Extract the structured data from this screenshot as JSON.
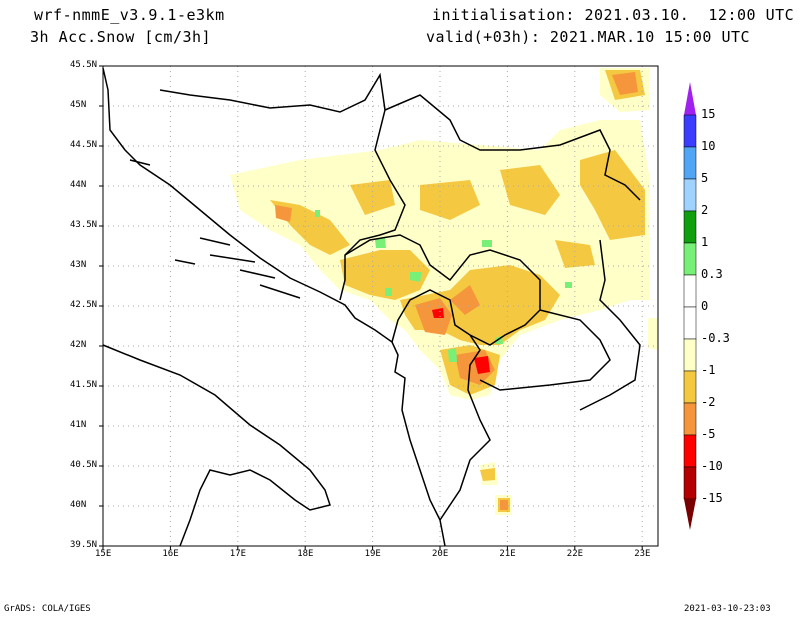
{
  "header": {
    "model": "wrf-nmmE_v3.9.1-e3km",
    "variable": "3h Acc.Snow [cm/3h]",
    "init": "initialisation: 2021.03.10.  12:00 UTC",
    "valid": "valid(+03h): 2021.MAR.10 15:00 UTC"
  },
  "footer": {
    "left": "GrADS: COLA/IGES",
    "right": "2021-03-10-23:03"
  },
  "axes": {
    "lon_labels": [
      "15E",
      "16E",
      "17E",
      "18E",
      "19E",
      "20E",
      "21E",
      "22E",
      "23E"
    ],
    "lat_labels": [
      "45.5N",
      "45N",
      "44.5N",
      "44N",
      "43.5N",
      "43N",
      "42.5N",
      "42N",
      "41.5N",
      "41N",
      "40.5N",
      "40N",
      "39.5N"
    ]
  },
  "colorbar": {
    "labels": [
      "15",
      "10",
      "5",
      "2",
      "1",
      "0.3",
      "0",
      "-0.3",
      "-1",
      "-2",
      "-5",
      "-10",
      "-15"
    ],
    "colors": [
      "#a020f0",
      "#3c3cff",
      "#50a5f5",
      "#a0d2ff",
      "#0f9f0f",
      "#78f078",
      "#ffffff",
      "#ffffff",
      "#ffffc8",
      "#f5c841",
      "#f5963c",
      "#ff0000",
      "#b40000",
      "#780000"
    ]
  },
  "colors": {
    "pale": "#ffffc8",
    "yellow": "#f5c841",
    "orange": "#f5963c",
    "red": "#ff0000",
    "green": "#78f078",
    "darkgreen": "#0f9f0f"
  }
}
